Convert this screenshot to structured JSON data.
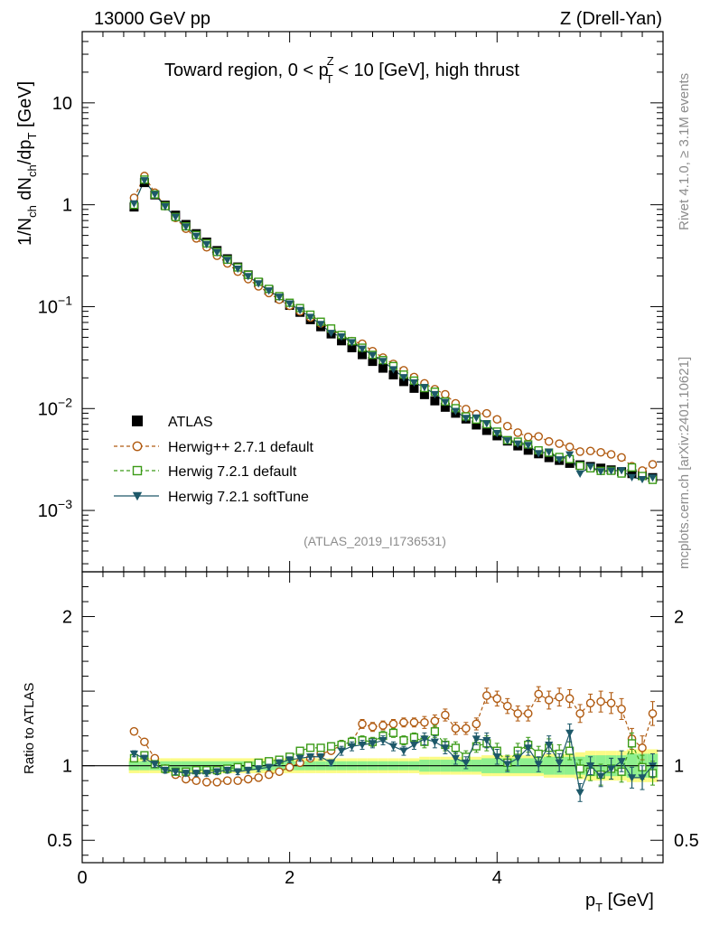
{
  "header": {
    "left": "13000 GeV pp",
    "right": "Z (Drell-Yan)"
  },
  "side_labels": {
    "rivet": "Rivet 4.1.0, ≥ 3.1M events",
    "mcplots": "mcplots.cern.ch [arXiv:2401.10621]"
  },
  "analysis_tag": "(ATLAS_2019_I1736531)",
  "chart_data": {
    "type": "scatter",
    "title": "Toward region, 0 < pTZ < 10 [GeV], high thrust",
    "title_parts": {
      "pre": "Toward region, 0 < p",
      "sup": "Z",
      "sub": "T",
      "post": " < 10 [GeV], high thrust"
    },
    "xlabel": "p_T [GeV]",
    "xlabel_parts": {
      "main": "p",
      "sub": "T",
      "unit": " [GeV]"
    },
    "ylabel": "1/N_ch dN_ch/dp_T [GeV]",
    "ratio_ylabel": "Ratio to ATLAS",
    "yscale": "log",
    "xlim": [
      0,
      5.6
    ],
    "ylim": [
      0.00025,
      50
    ],
    "ratio_ylim": [
      0.35,
      2.3
    ],
    "xticks": [
      0,
      2,
      4
    ],
    "xtick_labels": [
      "0",
      "2",
      "4"
    ],
    "yticks": [
      {
        "value": 10,
        "label": "10"
      },
      {
        "value": 1,
        "label": "1"
      },
      {
        "value": 0.1,
        "base": "10",
        "exp": "−1"
      },
      {
        "value": 0.01,
        "base": "10",
        "exp": "−2"
      },
      {
        "value": 0.001,
        "base": "10",
        "exp": "−3"
      }
    ],
    "ratio_yticks": [
      {
        "value": 0.5,
        "label": "0.5"
      },
      {
        "value": 1,
        "label": "1"
      },
      {
        "value": 2,
        "label": "2"
      }
    ],
    "legend_position": "middle-left",
    "x": [
      0.5,
      0.6,
      0.7,
      0.8,
      0.9,
      1.0,
      1.1,
      1.2,
      1.3,
      1.4,
      1.5,
      1.6,
      1.7,
      1.8,
      1.9,
      2.0,
      2.1,
      2.2,
      2.3,
      2.4,
      2.5,
      2.6,
      2.7,
      2.8,
      2.9,
      3.0,
      3.1,
      3.2,
      3.3,
      3.4,
      3.5,
      3.6,
      3.7,
      3.8,
      3.9,
      4.0,
      4.1,
      4.2,
      4.3,
      4.4,
      4.5,
      4.6,
      4.7,
      4.8,
      4.9,
      5.0,
      5.1,
      5.2,
      5.3,
      5.4,
      5.5
    ],
    "atlas_values": [
      0.95,
      1.65,
      1.25,
      0.99,
      0.79,
      0.64,
      0.52,
      0.43,
      0.355,
      0.295,
      0.245,
      0.205,
      0.172,
      0.145,
      0.122,
      0.103,
      0.088,
      0.0745,
      0.0635,
      0.054,
      0.0462,
      0.0395,
      0.0338,
      0.029,
      0.0249,
      0.0214,
      0.0184,
      0.0158,
      0.0137,
      0.0119,
      0.0103,
      0.009,
      0.0079,
      0.0069,
      0.0061,
      0.0054,
      0.0048,
      0.0043,
      0.0039,
      0.0036,
      0.0033,
      0.0031,
      0.0029,
      0.0028,
      0.0027,
      0.0026,
      0.0025,
      0.0024,
      0.0023,
      0.0022,
      0.0021
    ],
    "atlas_band_stat": [
      0.03,
      0.03,
      0.03,
      0.03,
      0.03,
      0.03,
      0.03,
      0.03,
      0.03,
      0.03,
      0.03,
      0.03,
      0.03,
      0.03,
      0.03,
      0.03,
      0.03,
      0.03,
      0.03,
      0.03,
      0.03,
      0.03,
      0.03,
      0.03,
      0.03,
      0.03,
      0.03,
      0.03,
      0.04,
      0.04,
      0.04,
      0.04,
      0.04,
      0.04,
      0.05,
      0.05,
      0.05,
      0.05,
      0.05,
      0.05,
      0.06,
      0.06,
      0.06,
      0.06,
      0.07,
      0.07,
      0.07,
      0.07,
      0.08,
      0.08,
      0.08
    ],
    "atlas_band_total": [
      0.05,
      0.05,
      0.05,
      0.05,
      0.05,
      0.05,
      0.05,
      0.05,
      0.05,
      0.05,
      0.05,
      0.05,
      0.05,
      0.05,
      0.05,
      0.05,
      0.05,
      0.05,
      0.05,
      0.05,
      0.05,
      0.05,
      0.05,
      0.05,
      0.05,
      0.05,
      0.05,
      0.05,
      0.06,
      0.06,
      0.06,
      0.06,
      0.06,
      0.06,
      0.07,
      0.07,
      0.07,
      0.07,
      0.07,
      0.07,
      0.08,
      0.08,
      0.08,
      0.09,
      0.1,
      0.1,
      0.1,
      0.1,
      0.11,
      0.11,
      0.11
    ],
    "series": [
      {
        "name": "ATLAS",
        "color": "#000000",
        "marker": "filled-square",
        "line": "none"
      },
      {
        "name": "Herwig++ 2.7.1 default",
        "color": "#b05a10",
        "marker": "open-circle",
        "line": "dashed",
        "ratio": [
          1.23,
          1.16,
          1.05,
          0.98,
          0.94,
          0.91,
          0.9,
          0.89,
          0.89,
          0.9,
          0.9,
          0.91,
          0.92,
          0.94,
          0.96,
          0.99,
          1.02,
          1.05,
          1.08,
          1.1,
          1.14,
          1.16,
          1.28,
          1.26,
          1.27,
          1.28,
          1.29,
          1.29,
          1.29,
          1.3,
          1.34,
          1.25,
          1.25,
          1.28,
          1.47,
          1.45,
          1.4,
          1.35,
          1.35,
          1.48,
          1.44,
          1.46,
          1.45,
          1.35,
          1.42,
          1.43,
          1.42,
          1.38,
          1.18,
          1.12,
          1.35
        ],
        "ratio_err": [
          0.02,
          0.02,
          0.02,
          0.02,
          0.02,
          0.02,
          0.02,
          0.02,
          0.02,
          0.02,
          0.02,
          0.02,
          0.02,
          0.02,
          0.02,
          0.02,
          0.02,
          0.02,
          0.02,
          0.02,
          0.03,
          0.03,
          0.03,
          0.03,
          0.03,
          0.03,
          0.03,
          0.03,
          0.04,
          0.04,
          0.04,
          0.04,
          0.04,
          0.04,
          0.05,
          0.05,
          0.05,
          0.05,
          0.05,
          0.05,
          0.06,
          0.06,
          0.06,
          0.06,
          0.06,
          0.07,
          0.07,
          0.07,
          0.07,
          0.08,
          0.08
        ]
      },
      {
        "name": "Herwig 7.2.1 default",
        "color": "#3c9b18",
        "marker": "open-square",
        "line": "dashed",
        "ratio": [
          1.05,
          1.07,
          1.01,
          0.98,
          0.96,
          0.96,
          0.97,
          0.97,
          0.97,
          0.98,
          0.99,
          1.0,
          1.02,
          1.03,
          1.04,
          1.06,
          1.1,
          1.12,
          1.12,
          1.13,
          1.14,
          1.16,
          1.17,
          1.16,
          1.2,
          1.22,
          1.17,
          1.19,
          1.16,
          1.23,
          1.14,
          1.12,
          1.06,
          1.13,
          1.15,
          1.1,
          1.02,
          1.1,
          1.14,
          1.08,
          1.12,
          1.08,
          1.1,
          0.98,
          0.96,
          0.94,
          0.98,
          0.96,
          1.15,
          0.99,
          0.95
        ],
        "ratio_err": [
          0.02,
          0.02,
          0.02,
          0.02,
          0.02,
          0.02,
          0.02,
          0.02,
          0.02,
          0.02,
          0.02,
          0.02,
          0.02,
          0.02,
          0.02,
          0.02,
          0.02,
          0.02,
          0.02,
          0.02,
          0.03,
          0.03,
          0.03,
          0.03,
          0.03,
          0.03,
          0.03,
          0.03,
          0.04,
          0.04,
          0.04,
          0.04,
          0.04,
          0.04,
          0.05,
          0.05,
          0.05,
          0.05,
          0.05,
          0.05,
          0.06,
          0.06,
          0.06,
          0.06,
          0.06,
          0.07,
          0.07,
          0.07,
          0.07,
          0.08,
          0.08
        ]
      },
      {
        "name": "Herwig 7.2.1 softTune",
        "color": "#1d5869",
        "marker": "filled-down-triangle",
        "line": "solid",
        "ratio": [
          1.08,
          1.05,
          1.01,
          0.97,
          0.96,
          0.95,
          0.95,
          0.95,
          0.96,
          0.97,
          0.96,
          0.97,
          0.98,
          0.99,
          1.02,
          1.04,
          1.05,
          1.06,
          1.06,
          1.02,
          1.1,
          1.13,
          1.14,
          1.15,
          1.17,
          1.13,
          1.1,
          1.14,
          1.18,
          1.16,
          1.12,
          1.05,
          1.02,
          1.18,
          1.17,
          1.06,
          1.01,
          1.05,
          1.12,
          1.01,
          1.14,
          1.02,
          1.22,
          0.82,
          1.0,
          0.93,
          0.98,
          1.03,
          0.92,
          0.92,
          1.0
        ],
        "ratio_err": [
          0.02,
          0.02,
          0.02,
          0.02,
          0.02,
          0.02,
          0.02,
          0.02,
          0.02,
          0.02,
          0.02,
          0.02,
          0.02,
          0.02,
          0.02,
          0.02,
          0.02,
          0.02,
          0.02,
          0.02,
          0.03,
          0.03,
          0.03,
          0.03,
          0.03,
          0.03,
          0.03,
          0.03,
          0.04,
          0.04,
          0.04,
          0.04,
          0.04,
          0.04,
          0.05,
          0.05,
          0.05,
          0.05,
          0.05,
          0.05,
          0.06,
          0.06,
          0.06,
          0.06,
          0.06,
          0.07,
          0.07,
          0.07,
          0.07,
          0.08,
          0.08
        ]
      }
    ]
  }
}
